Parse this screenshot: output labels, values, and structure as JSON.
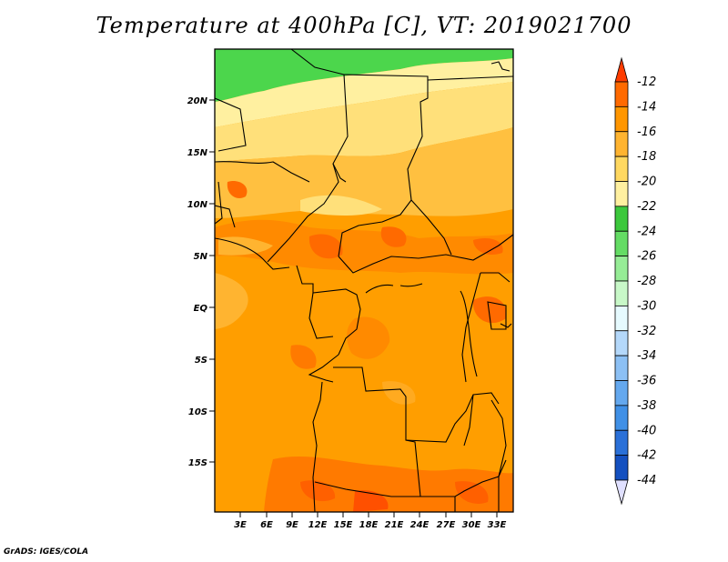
{
  "title": "Temperature at 400hPa [C], VT: 2019021700",
  "credit": "GrADS: IGES/COLA",
  "latitude_labels": [
    "20N",
    "15N",
    "10N",
    "5N",
    "EQ",
    "5S",
    "10S",
    "15S"
  ],
  "longitude_labels": [
    "3E",
    "6E",
    "9E",
    "12E",
    "15E",
    "18E",
    "21E",
    "24E",
    "27E",
    "30E",
    "33E"
  ],
  "colorbar": {
    "labels": [
      "-12",
      "-14",
      "-16",
      "-18",
      "-20",
      "-22",
      "-24",
      "-26",
      "-28",
      "-30",
      "-32",
      "-34",
      "-36",
      "-38",
      "-40",
      "-42",
      "-44"
    ],
    "colors": [
      "#ff3c00",
      "#ff6a00",
      "#ff9600",
      "#ffb430",
      "#ffd860",
      "#fff0a0",
      "#3cc83c",
      "#64dc64",
      "#96ec96",
      "#c8f8c8",
      "#e6fafe",
      "#b4d8fa",
      "#8cc0f4",
      "#64a8ee",
      "#4090e6",
      "#2a70d8",
      "#1450c0",
      "#0a2ea0",
      "#0a1470",
      "#e0e0ff"
    ]
  }
}
